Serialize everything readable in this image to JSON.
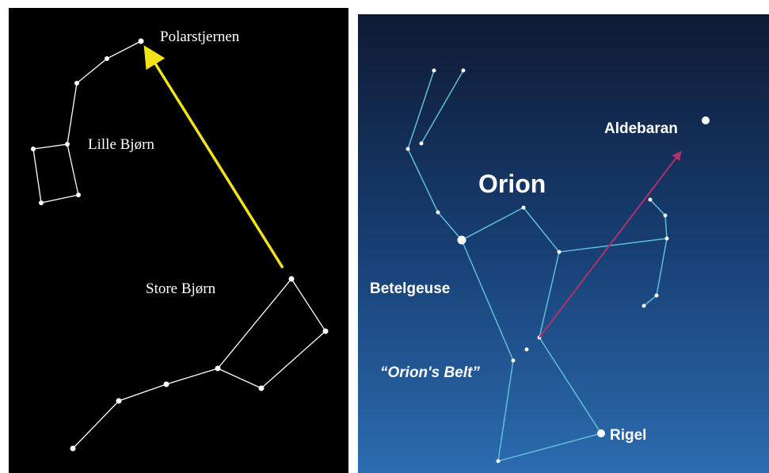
{
  "left_panel": {
    "labels": {
      "pole_star": "Polarstjernen",
      "little_dipper": "Lille Bjørn",
      "big_dipper": "Store Bjørn"
    }
  },
  "right_panel": {
    "title": "Orion",
    "labels": {
      "aldebaran": "Aldebaran",
      "betelgeuse": "Betelgeuse",
      "belt": "“Orion's Belt”",
      "rigel": "Rigel"
    }
  }
}
